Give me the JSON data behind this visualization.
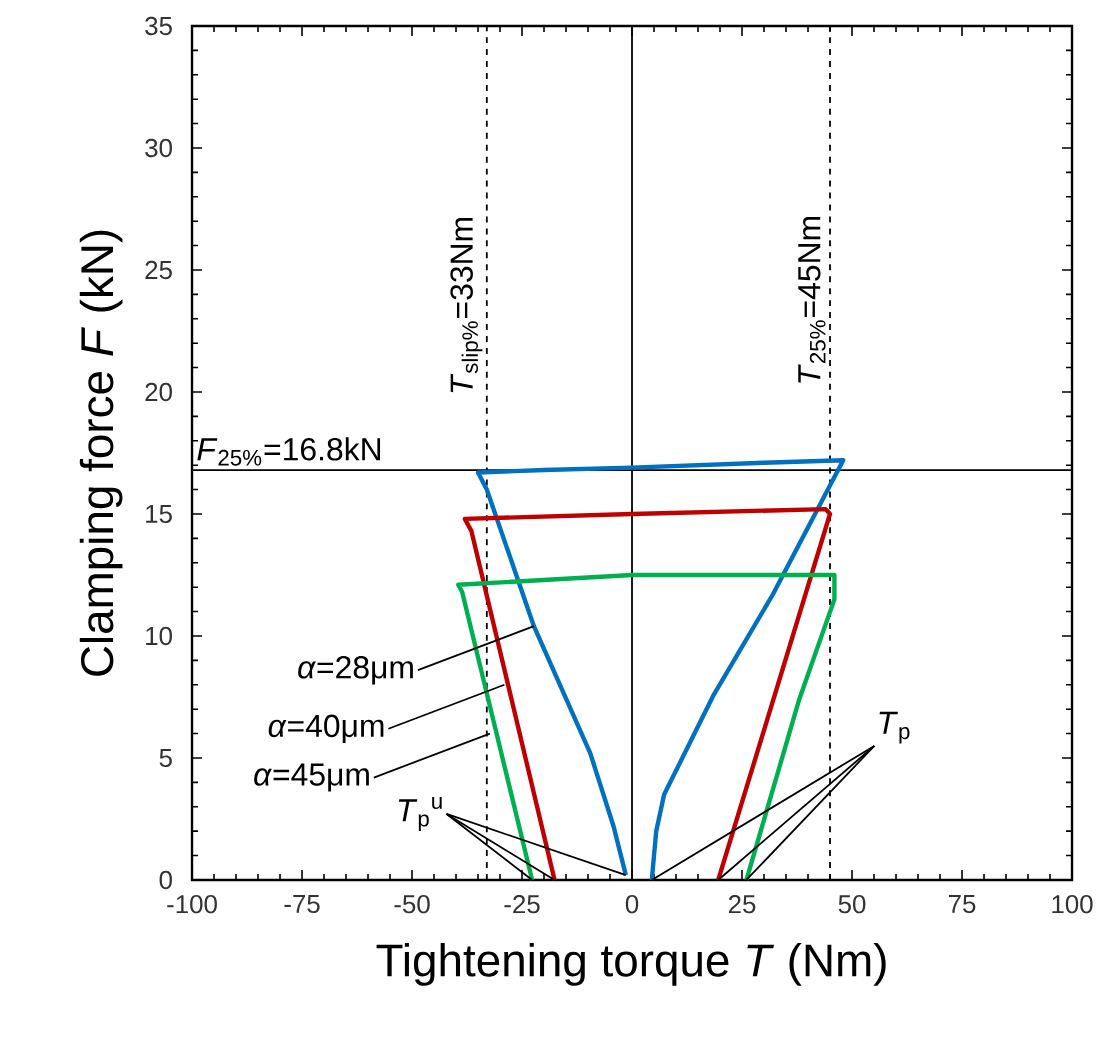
{
  "chart_data": {
    "type": "line",
    "xlabel": "Tightening torque *T* (Nm)",
    "ylabel": "Clamping force *F* (kN)",
    "xlim": [
      -100,
      100
    ],
    "ylim": [
      0,
      35
    ],
    "xticks": [
      -100,
      -75,
      -50,
      -25,
      0,
      25,
      50,
      75,
      100
    ],
    "yticks": [
      0,
      5,
      10,
      15,
      20,
      25,
      30,
      35
    ],
    "series": [
      {
        "color": "#0070c0",
        "x": [
          4.5,
          5.5,
          7.3,
          18.6,
          32,
          48,
          30,
          0,
          -20,
          -35,
          -33,
          -22.3,
          -9.5,
          -4.2,
          -1.4
        ],
        "values": [
          0,
          2,
          3.5,
          7.6,
          11.7,
          17.2,
          17.1,
          16.9,
          16.8,
          16.7,
          16.0,
          10.4,
          5.2,
          2.2,
          0.2
        ]
      },
      {
        "color": "#c00000",
        "x": [
          19.6,
          45,
          44,
          0,
          -38,
          -36.5,
          -17.6
        ],
        "values": [
          0,
          15.0,
          15.2,
          15.0,
          14.8,
          14.3,
          0
        ]
      },
      {
        "color": "#00b050",
        "x": [
          26,
          38,
          46,
          46,
          0,
          -39.5,
          -38.6,
          -22.7
        ],
        "values": [
          0,
          7.4,
          11.5,
          12.5,
          12.5,
          12.1,
          11.8,
          0
        ]
      }
    ],
    "ref_lines": [
      {
        "axis": "x",
        "value": -33,
        "line_style": "dashed"
      },
      {
        "axis": "x",
        "value": 45,
        "label": "*T*$_{25%}$=45Nm",
        "line_style": "dashed"
      },
      {
        "axis": "y",
        "value": 16.8,
        "label": "*F*$_{25%}$=16.8kN",
        "line_style": "solid"
      },
      {
        "axis": "x",
        "value": 0,
        "line_style": "solid"
      }
    ],
    "annotations": [
      {
        "text": "*α*=28μm",
        "x": -22.3,
        "y": 10.4
      },
      {
        "text": "*α*=40μm",
        "x": -29,
        "y": 8.0
      },
      {
        "text": "*α*=45μm",
        "x": -32.3,
        "y": 6.0
      },
      {
        "text": "*T*$_{p}$$^{u}$",
        "x": -17.6,
        "y": 0
      },
      {
        "text": "*T*$_{p}$",
        "x": 19.6,
        "y": 0
      },
      {
        "text": "*T*$_{slip%}$=33Nm",
        "x": -33,
        "y": 27.4
      }
    ]
  }
}
